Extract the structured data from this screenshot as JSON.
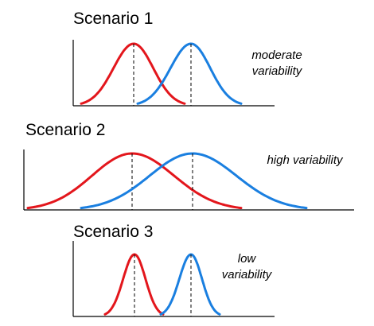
{
  "scenarios": [
    {
      "title": "Scenario 1",
      "note_lines": [
        "moderate",
        "variability"
      ],
      "variability": "moderate"
    },
    {
      "title": "Scenario 2",
      "note_lines": [
        "high variability"
      ],
      "variability": "high"
    },
    {
      "title": "Scenario 3",
      "note_lines": [
        "low",
        "variability"
      ],
      "variability": "low"
    }
  ],
  "colors": {
    "red_curve": "#e3161c",
    "blue_curve": "#1a7fe0",
    "axis": "#000000",
    "mean_line": "#000000"
  }
}
